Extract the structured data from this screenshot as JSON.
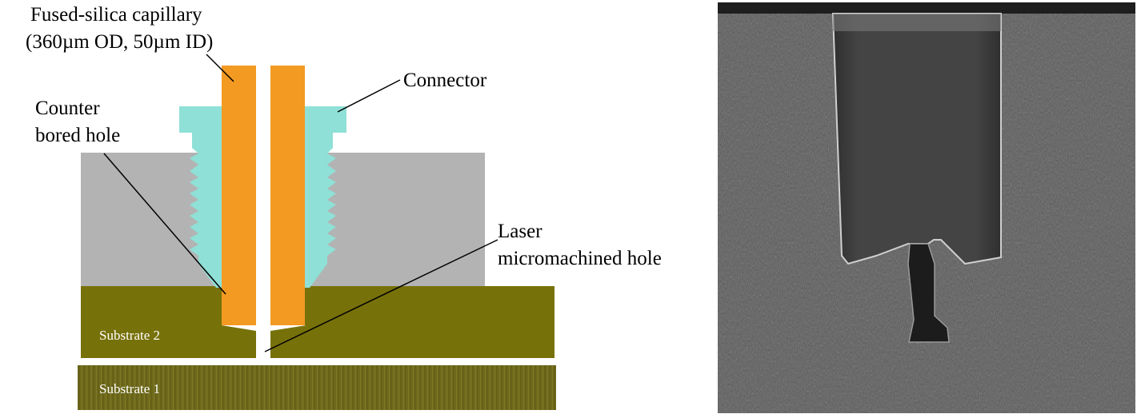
{
  "labels": {
    "capillary_line1": "Fused-silica capillary",
    "capillary_line2": "(360µm OD, 50µm ID)",
    "connector": "Connector",
    "counter_line1": "Counter",
    "counter_line2": "bored hole",
    "laser_line1": "Laser",
    "laser_line2": "micromachined hole",
    "substrate2": "Substrate 2",
    "substrate1": "Substrate 1"
  },
  "colors": {
    "capillary": "#f39a22",
    "connector": "#8fe0d6",
    "block": "#b3b3b3",
    "substrate2": "#77710a",
    "substrate1": "#6f6a1c",
    "sem_background": "#5a5a5a",
    "sem_cavity": "#3f3f3f"
  }
}
